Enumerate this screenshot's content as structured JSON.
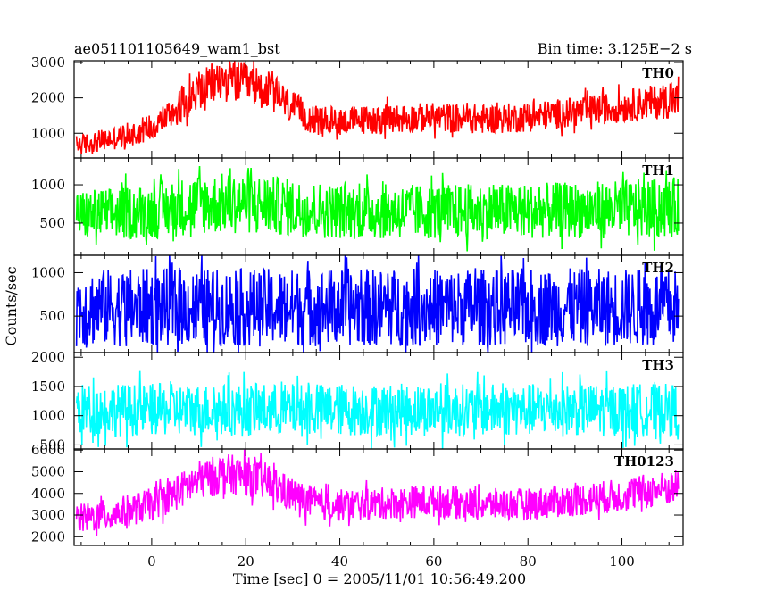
{
  "header": {
    "title_left": "ae051101105649_wam1_bst",
    "title_right": "Bin time: 3.125E−2 s"
  },
  "chart_data": {
    "type": "line",
    "xlabel": "Time [sec] 0 = 2005/11/01 10:56:49.200",
    "ylabel": "Counts/sec",
    "xlim": [
      -16.5,
      113
    ],
    "x_ticks": [
      0,
      20,
      40,
      60,
      80,
      100
    ],
    "data_x_range": [
      -16,
      112
    ],
    "panels": [
      {
        "name": "TH0",
        "color": "#ff0000",
        "ylim": [
          300,
          3050
        ],
        "y_ticks": [
          1000,
          2000,
          3000
        ],
        "x": [
          -16,
          -10,
          -5,
          0,
          5,
          10,
          15,
          20,
          25,
          30,
          35,
          40,
          50,
          60,
          70,
          80,
          90,
          100,
          105,
          112
        ],
        "center": [
          650,
          800,
          950,
          1200,
          1650,
          2200,
          2500,
          2400,
          2200,
          1700,
          1350,
          1350,
          1400,
          1450,
          1400,
          1450,
          1600,
          1750,
          1850,
          1950
        ],
        "spread": [
          300,
          320,
          350,
          400,
          450,
          550,
          600,
          580,
          550,
          480,
          420,
          400,
          420,
          420,
          420,
          420,
          430,
          450,
          480,
          520
        ]
      },
      {
        "name": "TH1",
        "color": "#00ff00",
        "ylim": [
          80,
          1350
        ],
        "y_ticks": [
          500,
          1000
        ],
        "x": [
          -16,
          0,
          10,
          20,
          30,
          40,
          60,
          80,
          100,
          112
        ],
        "center": [
          600,
          650,
          750,
          760,
          700,
          650,
          650,
          660,
          680,
          700
        ],
        "spread": [
          330,
          360,
          400,
          400,
          380,
          360,
          360,
          360,
          380,
          400
        ]
      },
      {
        "name": "TH2",
        "color": "#0000ff",
        "ylim": [
          80,
          1200
        ],
        "y_ticks": [
          500,
          1000
        ],
        "x": [
          -16,
          112
        ],
        "center": [
          600,
          600
        ],
        "spread": [
          450,
          450
        ]
      },
      {
        "name": "TH3",
        "color": "#00ffff",
        "ylim": [
          430,
          2080
        ],
        "y_ticks": [
          500,
          1000,
          1500,
          2000
        ],
        "x": [
          -16,
          112
        ],
        "center": [
          1100,
          1100
        ],
        "spread": [
          450,
          450
        ]
      },
      {
        "name": "TH0123",
        "color": "#ff00ff",
        "ylim": [
          1600,
          6050
        ],
        "y_ticks": [
          2000,
          3000,
          4000,
          5000,
          6000
        ],
        "x": [
          -16,
          -10,
          -5,
          0,
          5,
          10,
          15,
          20,
          25,
          30,
          35,
          40,
          50,
          60,
          70,
          80,
          90,
          100,
          105,
          112
        ],
        "center": [
          2800,
          3000,
          3200,
          3500,
          4000,
          4600,
          4900,
          4800,
          4500,
          3900,
          3500,
          3450,
          3550,
          3650,
          3500,
          3500,
          3700,
          3900,
          4100,
          4300
        ],
        "spread": [
          700,
          720,
          740,
          760,
          820,
          900,
          950,
          920,
          880,
          800,
          760,
          740,
          740,
          760,
          740,
          740,
          760,
          780,
          800,
          820
        ]
      }
    ]
  }
}
